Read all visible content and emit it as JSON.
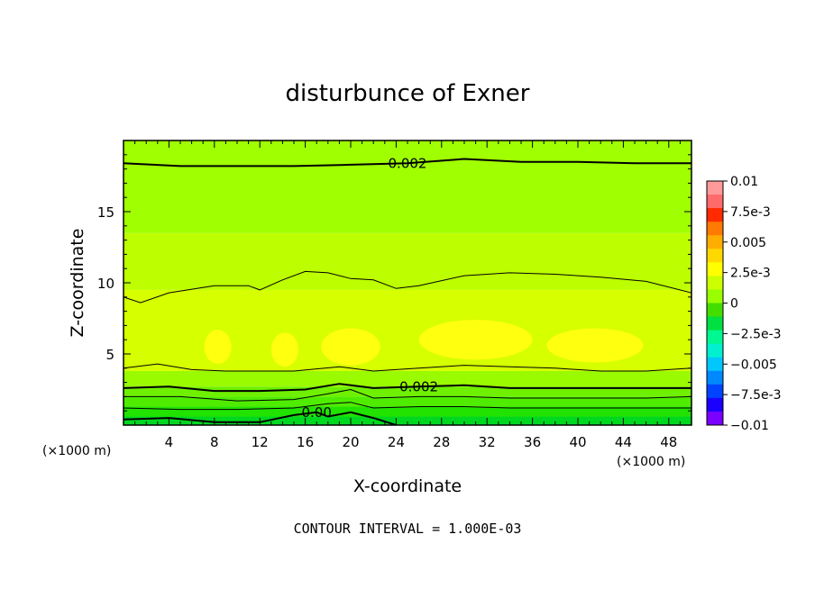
{
  "chart_data": {
    "type": "heatmap",
    "title": "disturbunce of Exner",
    "xlabel": "X-coordinate",
    "ylabel": "Z-coordinate",
    "x_unit": "(×1000 m)",
    "z_unit": "(×1000 m)",
    "xlim": [
      0,
      50
    ],
    "ylim": [
      0,
      20
    ],
    "x_ticks": [
      4,
      8,
      12,
      16,
      20,
      24,
      28,
      32,
      36,
      40,
      44,
      48
    ],
    "y_ticks": [
      5,
      10,
      15
    ],
    "contour_interval_text": "CONTOUR INTERVAL = 1.000E-03",
    "colorbar": {
      "labels": [
        "0.01",
        "7.5e-3",
        "0.005",
        "2.5e-3",
        "0",
        "-2.5e-3",
        "-0.005",
        "-7.5e-3",
        "-0.01"
      ],
      "colors": [
        "#ff9a9a",
        "#ff6b6b",
        "#ff2a00",
        "#ff7a00",
        "#ffae00",
        "#ffd800",
        "#ffff00",
        "#ccff00",
        "#99ff00",
        "#44dd00",
        "#00e040",
        "#00f890",
        "#00f0d0",
        "#00c8ff",
        "#0088ff",
        "#0044ff",
        "#1a00ff",
        "#7a00ff"
      ]
    },
    "bands": [
      {
        "z_bottom": 0,
        "z_top": 0.6,
        "color": "#00d820",
        "level": "-0.5e-3 to 0"
      },
      {
        "z_bottom": 0.6,
        "z_top": 1.3,
        "color": "#22e200",
        "level": "0 to 0.5e-3"
      },
      {
        "z_bottom": 1.3,
        "z_top": 2.0,
        "color": "#50ec00",
        "level": "0.5e-3 to 1e-3"
      },
      {
        "z_bottom": 2.0,
        "z_top": 2.7,
        "color": "#6ef000",
        "level": "1e-3 to 1.5e-3"
      },
      {
        "z_bottom": 2.7,
        "z_top": 3.8,
        "color": "#9afa00",
        "level": "1.5e-3 to 2e-3"
      },
      {
        "z_bottom": 3.8,
        "z_top": 9.5,
        "color": "#d6ff00",
        "level": "2e-3 to 3e-3"
      },
      {
        "z_bottom": 9.5,
        "z_top": 13.5,
        "color": "#bdff00",
        "level": "2.5e-3 to 3e-3"
      },
      {
        "z_bottom": 13.5,
        "z_top": 20,
        "color": "#a0ff00",
        "level": "2e-3 to 2.5e-3"
      }
    ],
    "max_blobs_level": "3e-3",
    "max_blobs": [
      {
        "x_center": 8.3,
        "z_center": 5.5,
        "width": 2.4,
        "height": 2.4
      },
      {
        "x_center": 14.2,
        "z_center": 5.3,
        "width": 2.4,
        "height": 2.4
      },
      {
        "x_center": 20.0,
        "z_center": 5.5,
        "width": 5.2,
        "height": 2.6
      },
      {
        "x_center": 31.0,
        "z_center": 6.0,
        "width": 10.0,
        "height": 2.8
      },
      {
        "x_center": 41.5,
        "z_center": 5.6,
        "width": 8.5,
        "height": 2.4
      }
    ],
    "contours": [
      {
        "level": "0.002",
        "label": "0.002",
        "thick": true,
        "points": [
          [
            0,
            18.4
          ],
          [
            5,
            18.2
          ],
          [
            10,
            18.2
          ],
          [
            15,
            18.2
          ],
          [
            20,
            18.3
          ],
          [
            25,
            18.4
          ],
          [
            30,
            18.7
          ],
          [
            35,
            18.5
          ],
          [
            40,
            18.5
          ],
          [
            45,
            18.4
          ],
          [
            50,
            18.4
          ]
        ]
      },
      {
        "level": "0.0025",
        "label": "",
        "thick": false,
        "points": [
          [
            0,
            9.0
          ],
          [
            1.5,
            8.6
          ],
          [
            4,
            9.3
          ],
          [
            8,
            9.8
          ],
          [
            11,
            9.8
          ],
          [
            12,
            9.5
          ],
          [
            14,
            10.2
          ],
          [
            16,
            10.8
          ],
          [
            18,
            10.7
          ],
          [
            20,
            10.3
          ],
          [
            22,
            10.2
          ],
          [
            24,
            9.6
          ],
          [
            26,
            9.8
          ],
          [
            30,
            10.5
          ],
          [
            34,
            10.7
          ],
          [
            38,
            10.6
          ],
          [
            42,
            10.4
          ],
          [
            46,
            10.1
          ],
          [
            50,
            9.3
          ]
        ]
      },
      {
        "level": "0.0025",
        "label": "",
        "thick": false,
        "points": [
          [
            0,
            4.0
          ],
          [
            3,
            4.3
          ],
          [
            6,
            3.9
          ],
          [
            9,
            3.8
          ],
          [
            12,
            3.8
          ],
          [
            15,
            3.8
          ],
          [
            19,
            4.1
          ],
          [
            22,
            3.8
          ],
          [
            26,
            4.0
          ],
          [
            30,
            4.2
          ],
          [
            34,
            4.1
          ],
          [
            38,
            4.0
          ],
          [
            42,
            3.8
          ],
          [
            46,
            3.8
          ],
          [
            50,
            4.0
          ]
        ]
      },
      {
        "level": "0.002",
        "label": "0.002",
        "thick": true,
        "points": [
          [
            0,
            2.6
          ],
          [
            4,
            2.7
          ],
          [
            8,
            2.4
          ],
          [
            12,
            2.4
          ],
          [
            16,
            2.5
          ],
          [
            19,
            2.9
          ],
          [
            22,
            2.6
          ],
          [
            26,
            2.7
          ],
          [
            30,
            2.8
          ],
          [
            34,
            2.6
          ],
          [
            38,
            2.6
          ],
          [
            42,
            2.6
          ],
          [
            46,
            2.6
          ],
          [
            50,
            2.6
          ]
        ]
      },
      {
        "level": "0.0015",
        "label": "",
        "thick": false,
        "points": [
          [
            0,
            2.0
          ],
          [
            5,
            2.0
          ],
          [
            10,
            1.7
          ],
          [
            15,
            1.8
          ],
          [
            18,
            2.2
          ],
          [
            20,
            2.5
          ],
          [
            22,
            1.9
          ],
          [
            26,
            2.0
          ],
          [
            30,
            2.0
          ],
          [
            34,
            1.9
          ],
          [
            38,
            1.9
          ],
          [
            42,
            1.9
          ],
          [
            46,
            1.9
          ],
          [
            50,
            2.0
          ]
        ]
      },
      {
        "level": "0.001",
        "label": "",
        "thick": false,
        "points": [
          [
            0,
            1.2
          ],
          [
            5,
            1.1
          ],
          [
            10,
            1.1
          ],
          [
            15,
            1.2
          ],
          [
            18,
            1.5
          ],
          [
            20,
            1.6
          ],
          [
            22,
            1.2
          ],
          [
            26,
            1.3
          ],
          [
            30,
            1.3
          ],
          [
            34,
            1.2
          ],
          [
            38,
            1.2
          ],
          [
            42,
            1.2
          ],
          [
            46,
            1.2
          ],
          [
            50,
            1.2
          ]
        ]
      },
      {
        "level": "0",
        "label": "0.00",
        "thick": true,
        "points": [
          [
            0,
            0.4
          ],
          [
            4,
            0.5
          ],
          [
            8,
            0.2
          ],
          [
            12,
            0.2
          ],
          [
            15,
            0.7
          ],
          [
            17,
            0.9
          ],
          [
            18,
            0.6
          ],
          [
            20,
            0.9
          ],
          [
            22,
            0.5
          ],
          [
            24,
            0.0
          ]
        ]
      }
    ]
  }
}
